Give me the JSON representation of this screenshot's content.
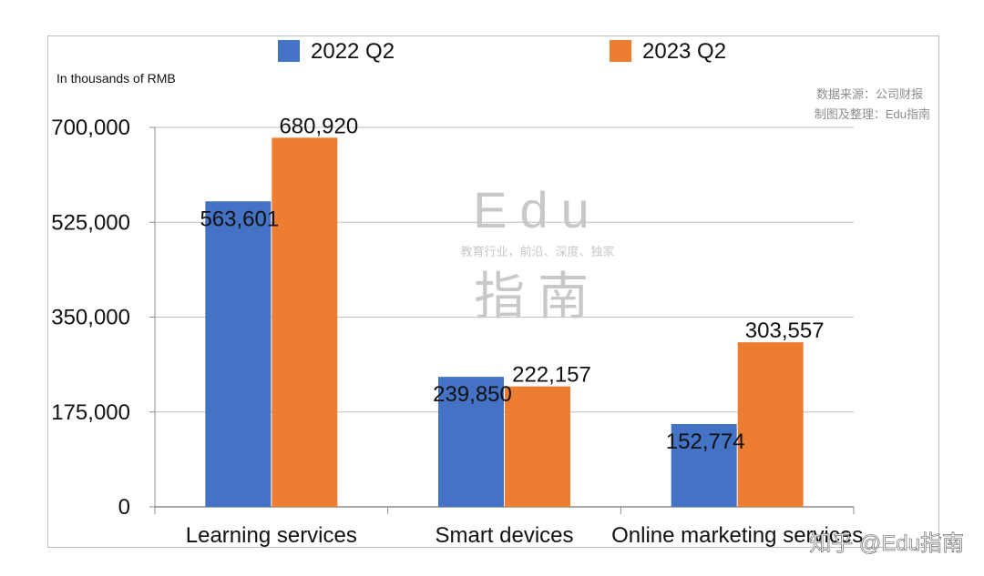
{
  "chart_data": {
    "type": "bar",
    "categories": [
      "Learning services",
      "Smart devices",
      "Online marketing services"
    ],
    "series": [
      {
        "name": "2022 Q2",
        "color": "#4472c4",
        "values": [
          563601,
          239850,
          152774
        ]
      },
      {
        "name": "2023 Q2",
        "color": "#ed7d31",
        "values": [
          680920,
          222157,
          303557
        ]
      }
    ],
    "value_labels": [
      [
        "563,601",
        "239,850",
        "152,774"
      ],
      [
        "680,920",
        "222,157",
        "303,557"
      ]
    ],
    "ylabel": "In thousands of RMB",
    "ylim": [
      0,
      700000
    ],
    "yticks": [
      0,
      175000,
      350000,
      525000,
      700000
    ],
    "ytick_labels": [
      "0",
      "175,000",
      "350,000",
      "525,000",
      "700,000"
    ],
    "grid": true,
    "legend_position": "top"
  },
  "source_note": [
    "数据来源：公司财报",
    "制图及整理：Edu指南"
  ],
  "watermark": {
    "brand": "Edu",
    "tagline": "教育行业，前沿、深度、独家",
    "name": "指南"
  },
  "corner_watermark": "知乎 @Edu指南"
}
